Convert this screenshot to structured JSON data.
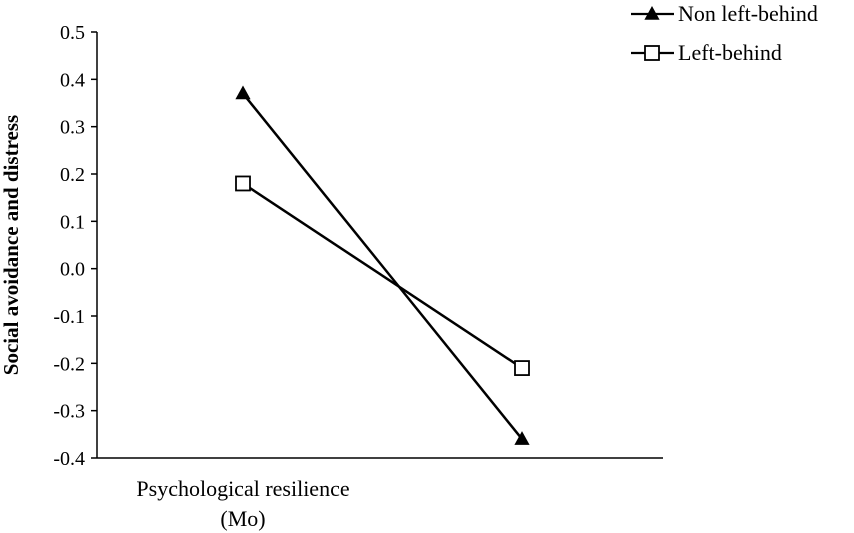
{
  "chart_data": {
    "type": "line",
    "title": "",
    "ylabel": "Social avoidance and distress",
    "xlabel": "",
    "ylim": [
      -0.4,
      0.5
    ],
    "yticks": [
      "0.5",
      "0.4",
      "0.3",
      "0.2",
      "0.1",
      "0.0",
      "-0.1",
      "-0.2",
      "-0.3",
      "-0.4"
    ],
    "category_label_line1": "Psychological resilience",
    "category_label_line2": "(Mo)",
    "legend_position": "top-right",
    "grid": false,
    "series": [
      {
        "name": "Non left-behind",
        "marker": "filled-triangle",
        "color": "#000000",
        "values": [
          0.37,
          -0.36
        ]
      },
      {
        "name": "Left-behind",
        "marker": "open-square",
        "color": "#000000",
        "values": [
          0.18,
          -0.21
        ]
      }
    ]
  }
}
